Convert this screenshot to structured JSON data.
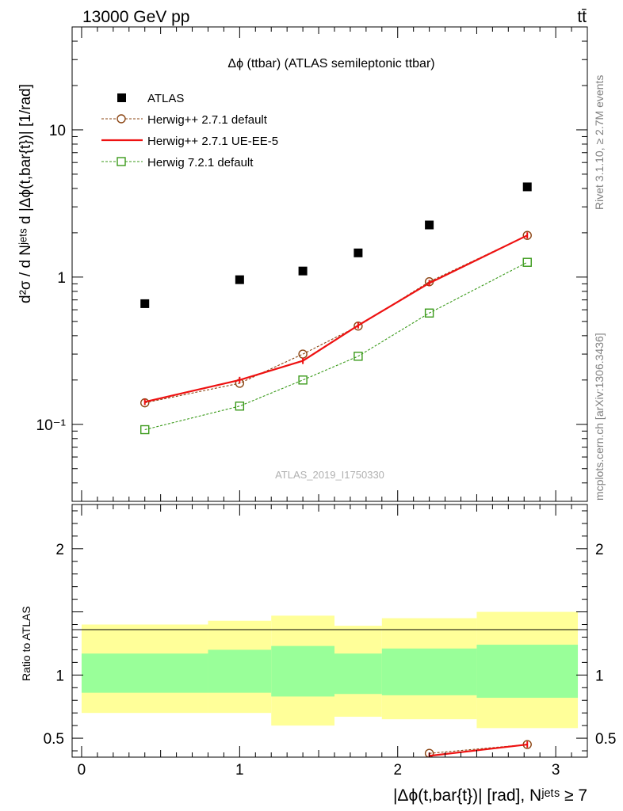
{
  "header": {
    "left": "13000 GeV pp",
    "right": "tt̄"
  },
  "side_labels": {
    "rivet": "Rivet 3.1.10, ≥ 2.7M events",
    "mcplots": "mcplots.cern.ch [arXiv:1306.3436]"
  },
  "chart_data": [
    {
      "type": "line",
      "panel": "main",
      "title": "Δϕ (ttbar) (ATLAS semileptonic ttbar)",
      "watermark": "ATLAS_2019_I1750330",
      "ylabel": "d²σ / d Nʲᵉᵗˢ d |Δϕ(t,bar{t})| [1/rad]",
      "yscale": "log",
      "xlim": [
        -0.06,
        3.2
      ],
      "ylim": [
        0.03,
        50
      ],
      "ytick_labels": [
        "10⁻¹",
        "1",
        "10"
      ],
      "legend_position": "top-left",
      "series": [
        {
          "name": "ATLAS",
          "marker": "filled-square",
          "color": "#000000",
          "x": [
            0.4,
            1.0,
            1.4,
            1.75,
            2.2,
            2.82
          ],
          "y": [
            0.66,
            0.96,
            1.1,
            1.46,
            2.26,
            4.1
          ]
        },
        {
          "name": "Herwig++ 2.7.1 default",
          "marker": "open-circle",
          "line": "dashed",
          "color": "#8b4513",
          "x": [
            0.4,
            1.0,
            1.4,
            1.75,
            2.2,
            2.82
          ],
          "y": [
            0.14,
            0.19,
            0.3,
            0.465,
            0.93,
            1.92
          ]
        },
        {
          "name": "Herwig++ 2.7.1 UE-EE-5",
          "marker": "none",
          "line": "solid",
          "color": "#ee1111",
          "x": [
            0.4,
            1.0,
            1.4,
            1.75,
            2.2,
            2.82
          ],
          "y": [
            0.142,
            0.2,
            0.27,
            0.47,
            0.91,
            1.92
          ]
        },
        {
          "name": "Herwig 7.2.1 default",
          "marker": "open-square",
          "line": "dashed",
          "color": "#3a9a1a",
          "x": [
            0.4,
            1.0,
            1.4,
            1.75,
            2.2,
            2.82
          ],
          "y": [
            0.092,
            0.133,
            0.2,
            0.29,
            0.57,
            1.26
          ]
        }
      ]
    },
    {
      "type": "line",
      "panel": "ratio",
      "ylabel": "Ratio to ATLAS",
      "xlabel": "|Δϕ(t,bar{t})| [rad], Nʲᵉᵗˢ ≥ 7",
      "xlim": [
        -0.06,
        3.2
      ],
      "ylim": [
        0.35,
        2.35
      ],
      "ytick_labels": [
        "0.5",
        "1",
        "2"
      ],
      "xtick_labels": [
        "0",
        "1",
        "2",
        "3"
      ],
      "bands": {
        "bin_edges": [
          0.0,
          0.8,
          1.2,
          1.6,
          1.9,
          2.5,
          3.14
        ],
        "yellow": {
          "color": "#ffff99",
          "low": [
            0.7,
            0.7,
            0.6,
            0.67,
            0.65,
            0.58
          ],
          "high": [
            1.4,
            1.43,
            1.47,
            1.39,
            1.45,
            1.5
          ]
        },
        "green": {
          "color": "#99ff99",
          "low": [
            0.86,
            0.86,
            0.83,
            0.85,
            0.84,
            0.82
          ],
          "high": [
            1.17,
            1.2,
            1.23,
            1.17,
            1.21,
            1.24
          ]
        }
      },
      "series": [
        {
          "name": "Herwig++ 2.7.1 default",
          "marker": "open-circle",
          "line": "dashed",
          "color": "#8b4513",
          "x": [
            2.2,
            2.82
          ],
          "y": [
            0.38,
            0.45
          ]
        },
        {
          "name": "Herwig++ 2.7.1 UE-EE-5",
          "marker": "none",
          "line": "solid",
          "color": "#ee1111",
          "x": [
            2.2,
            2.82
          ],
          "y": [
            0.36,
            0.45
          ]
        }
      ]
    }
  ]
}
